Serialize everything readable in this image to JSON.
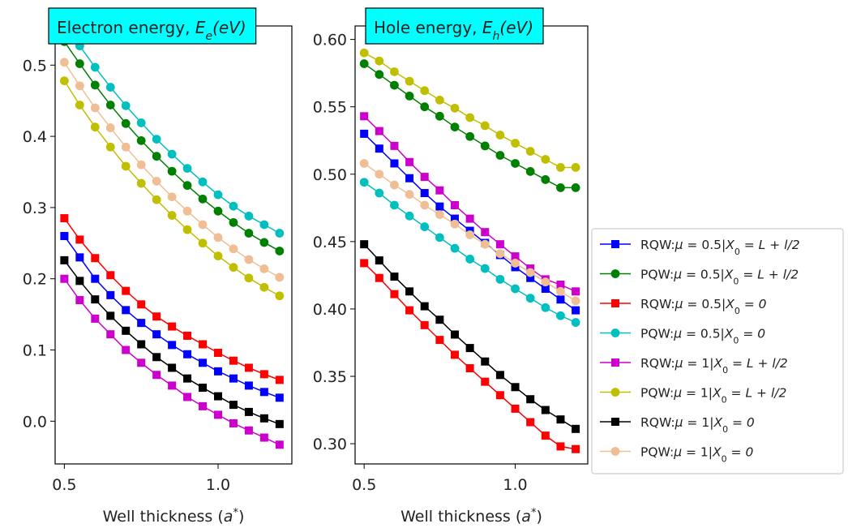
{
  "chart_data": [
    {
      "type": "line",
      "title_main": "Electron energy, ",
      "title_sym": "E",
      "title_sub": "e",
      "title_unit": "(eV)",
      "title_bg": "#00ffff",
      "xlabel_main": "Well thickness (",
      "xlabel_sym": "a",
      "xlabel_sup": "*",
      "xlabel_end": ")",
      "xlim": [
        0.47,
        1.24
      ],
      "ylim": [
        -0.06,
        0.555
      ],
      "xticks": [
        {
          "v": 0.5,
          "label": "0.5"
        },
        {
          "v": 1.0,
          "label": "1.0"
        }
      ],
      "yticks": [
        {
          "v": 0.0,
          "label": "0.0"
        },
        {
          "v": 0.1,
          "label": "0.1"
        },
        {
          "v": 0.2,
          "label": "0.2"
        },
        {
          "v": 0.3,
          "label": "0.3"
        },
        {
          "v": 0.4,
          "label": "0.4"
        },
        {
          "v": 0.5,
          "label": "0.5"
        }
      ],
      "x": [
        0.5,
        0.55,
        0.6,
        0.65,
        0.7,
        0.75,
        0.8,
        0.85,
        0.9,
        0.95,
        1.0,
        1.05,
        1.1,
        1.15,
        1.2
      ],
      "series": [
        {
          "key": "rqw-mu05-x0l",
          "color": "#0000ff",
          "marker": "square",
          "values": [
            0.26,
            0.23,
            0.2,
            0.177,
            0.156,
            0.138,
            0.122,
            0.107,
            0.094,
            0.082,
            0.07,
            0.06,
            0.05,
            0.041,
            0.033
          ]
        },
        {
          "key": "pqw-mu05-x0l",
          "color": "#008000",
          "marker": "circle",
          "values": [
            0.533,
            0.502,
            0.472,
            0.444,
            0.418,
            0.394,
            0.372,
            0.351,
            0.331,
            0.312,
            0.295,
            0.279,
            0.264,
            0.251,
            0.239
          ]
        },
        {
          "key": "rqw-mu05-x00",
          "color": "#ff0000",
          "marker": "square",
          "values": [
            0.285,
            0.255,
            0.229,
            0.205,
            0.183,
            0.164,
            0.147,
            0.133,
            0.12,
            0.108,
            0.096,
            0.085,
            0.075,
            0.066,
            0.058
          ]
        },
        {
          "key": "pqw-mu05-x00",
          "color": "#00bfbf",
          "marker": "circle",
          "values": [
            0.555,
            0.527,
            0.497,
            0.469,
            0.443,
            0.419,
            0.396,
            0.375,
            0.355,
            0.336,
            0.318,
            0.302,
            0.288,
            0.276,
            0.264
          ]
        },
        {
          "key": "rqw-mu1-x0l",
          "color": "#cc00cc",
          "marker": "square",
          "values": [
            0.2,
            0.17,
            0.144,
            0.122,
            0.1,
            0.082,
            0.065,
            0.05,
            0.034,
            0.021,
            0.009,
            -0.003,
            -0.013,
            -0.023,
            -0.033
          ]
        },
        {
          "key": "pqw-mu1-x0l",
          "color": "#bfbf00",
          "marker": "circle",
          "values": [
            0.478,
            0.444,
            0.413,
            0.385,
            0.358,
            0.334,
            0.311,
            0.289,
            0.269,
            0.25,
            0.232,
            0.216,
            0.201,
            0.188,
            0.176
          ]
        },
        {
          "key": "rqw-mu1-x00",
          "color": "#000000",
          "marker": "square",
          "values": [
            0.226,
            0.197,
            0.171,
            0.148,
            0.127,
            0.108,
            0.09,
            0.075,
            0.06,
            0.047,
            0.035,
            0.023,
            0.013,
            0.004,
            -0.004
          ]
        },
        {
          "key": "pqw-mu1-x00",
          "color": "#f0be94",
          "marker": "circle",
          "values": [
            0.504,
            0.471,
            0.44,
            0.412,
            0.385,
            0.36,
            0.337,
            0.315,
            0.295,
            0.276,
            0.258,
            0.242,
            0.227,
            0.214,
            0.202
          ]
        }
      ]
    },
    {
      "type": "line",
      "title_main": "Hole energy, ",
      "title_sym": "E",
      "title_sub": "h",
      "title_unit": "(eV)",
      "title_bg": "#00ffff",
      "xlabel_main": "Well thickness (",
      "xlabel_sym": "a",
      "xlabel_sup": "*",
      "xlabel_end": ")",
      "xlim": [
        0.47,
        1.24
      ],
      "ylim": [
        0.285,
        0.61
      ],
      "xticks": [
        {
          "v": 0.5,
          "label": "0.5"
        },
        {
          "v": 1.0,
          "label": "1.0"
        }
      ],
      "yticks": [
        {
          "v": 0.3,
          "label": "0.30"
        },
        {
          "v": 0.35,
          "label": "0.35"
        },
        {
          "v": 0.4,
          "label": "0.40"
        },
        {
          "v": 0.45,
          "label": "0.45"
        },
        {
          "v": 0.5,
          "label": "0.50"
        },
        {
          "v": 0.55,
          "label": "0.55"
        },
        {
          "v": 0.6,
          "label": "0.60"
        }
      ],
      "x": [
        0.5,
        0.55,
        0.6,
        0.65,
        0.7,
        0.75,
        0.8,
        0.85,
        0.9,
        0.95,
        1.0,
        1.05,
        1.1,
        1.15,
        1.2
      ],
      "series": [
        {
          "key": "rqw-mu05-x0l",
          "color": "#0000ff",
          "marker": "square",
          "values": [
            0.53,
            0.519,
            0.508,
            0.497,
            0.486,
            0.476,
            0.467,
            0.458,
            0.449,
            0.44,
            0.431,
            0.423,
            0.415,
            0.407,
            0.399
          ]
        },
        {
          "key": "pqw-mu05-x0l",
          "color": "#008000",
          "marker": "circle",
          "values": [
            0.582,
            0.574,
            0.566,
            0.558,
            0.55,
            0.543,
            0.535,
            0.528,
            0.521,
            0.514,
            0.508,
            0.502,
            0.496,
            0.49,
            0.49
          ]
        },
        {
          "key": "rqw-mu05-x00",
          "color": "#ff0000",
          "marker": "square",
          "values": [
            0.434,
            0.423,
            0.411,
            0.399,
            0.388,
            0.377,
            0.366,
            0.356,
            0.346,
            0.336,
            0.326,
            0.316,
            0.306,
            0.298,
            0.296
          ]
        },
        {
          "key": "pqw-mu05-x00",
          "color": "#00bfbf",
          "marker": "circle",
          "values": [
            0.494,
            0.486,
            0.477,
            0.469,
            0.461,
            0.453,
            0.445,
            0.437,
            0.43,
            0.422,
            0.415,
            0.408,
            0.401,
            0.395,
            0.39
          ]
        },
        {
          "key": "rqw-mu1-x0l",
          "color": "#cc00cc",
          "marker": "square",
          "values": [
            0.543,
            0.532,
            0.521,
            0.509,
            0.498,
            0.488,
            0.477,
            0.467,
            0.457,
            0.448,
            0.439,
            0.43,
            0.422,
            0.418,
            0.413
          ]
        },
        {
          "key": "pqw-mu1-x0l",
          "color": "#bfbf00",
          "marker": "circle",
          "values": [
            0.59,
            0.584,
            0.576,
            0.569,
            0.562,
            0.555,
            0.549,
            0.542,
            0.536,
            0.529,
            0.523,
            0.517,
            0.511,
            0.505,
            0.505
          ]
        },
        {
          "key": "rqw-mu1-x00",
          "color": "#000000",
          "marker": "square",
          "values": [
            0.448,
            0.436,
            0.424,
            0.413,
            0.402,
            0.392,
            0.381,
            0.371,
            0.361,
            0.351,
            0.342,
            0.333,
            0.325,
            0.318,
            0.311
          ]
        },
        {
          "key": "pqw-mu1-x00",
          "color": "#f0be94",
          "marker": "circle",
          "values": [
            0.508,
            0.5,
            0.492,
            0.485,
            0.477,
            0.47,
            0.463,
            0.455,
            0.448,
            0.441,
            0.434,
            0.427,
            0.42,
            0.413,
            0.406
          ]
        }
      ]
    }
  ],
  "legend": {
    "placement": "right",
    "entries": [
      {
        "key": "rqw-mu05-x0l",
        "color": "#0000ff",
        "marker": "square",
        "prefix": "RQW:",
        "sym": "μ",
        "mid": " = 0.5|",
        "x": "X",
        "xsub": "0",
        "tail": " = L + l/2"
      },
      {
        "key": "pqw-mu05-x0l",
        "color": "#008000",
        "marker": "circle",
        "prefix": "PQW:",
        "sym": "μ",
        "mid": " = 0.5|",
        "x": "X",
        "xsub": "0",
        "tail": " = L + l/2"
      },
      {
        "key": "rqw-mu05-x00",
        "color": "#ff0000",
        "marker": "square",
        "prefix": "RQW:",
        "sym": "μ",
        "mid": " = 0.5|",
        "x": "X",
        "xsub": "0",
        "tail": " = 0"
      },
      {
        "key": "pqw-mu05-x00",
        "color": "#00bfbf",
        "marker": "circle",
        "prefix": "PQW:",
        "sym": "μ",
        "mid": " = 0.5|",
        "x": "X",
        "xsub": "0",
        "tail": " = 0"
      },
      {
        "key": "rqw-mu1-x0l",
        "color": "#cc00cc",
        "marker": "square",
        "prefix": "RQW:",
        "sym": "μ",
        "mid": " = 1|",
        "x": "X",
        "xsub": "0",
        "tail": " = L + l/2"
      },
      {
        "key": "pqw-mu1-x0l",
        "color": "#bfbf00",
        "marker": "circle",
        "prefix": "PQW:",
        "sym": "μ",
        "mid": " = 1|",
        "x": "X",
        "xsub": "0",
        "tail": " = L + l/2"
      },
      {
        "key": "rqw-mu1-x00",
        "color": "#000000",
        "marker": "square",
        "prefix": "RQW:",
        "sym": "μ",
        "mid": " = 1|",
        "x": "X",
        "xsub": "0",
        "tail": " = 0"
      },
      {
        "key": "pqw-mu1-x00",
        "color": "#f0be94",
        "marker": "circle",
        "prefix": "PQW:",
        "sym": "μ",
        "mid": " = 1|",
        "x": "X",
        "xsub": "0",
        "tail": " = 0"
      }
    ]
  }
}
